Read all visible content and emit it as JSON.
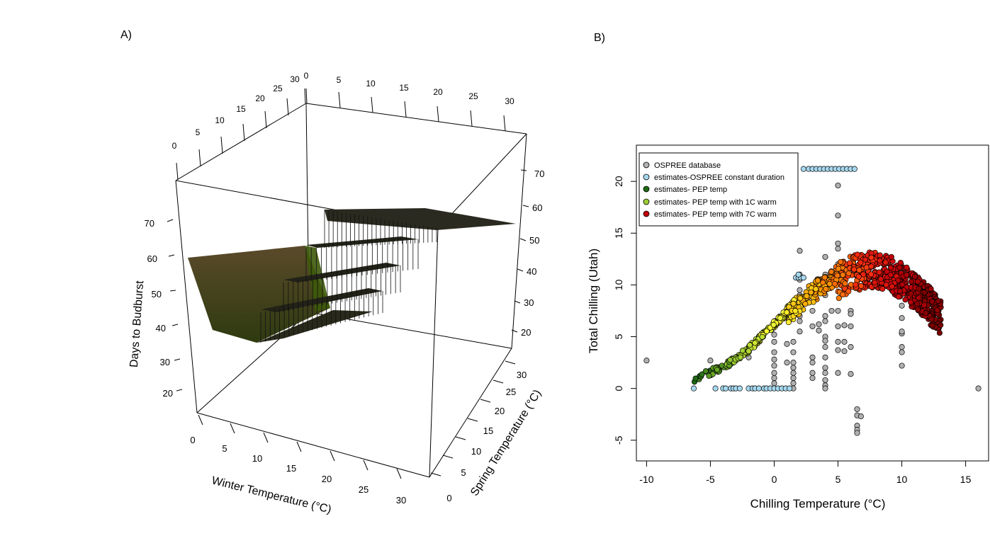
{
  "panel_a": {
    "label": "A)",
    "chart_data": {
      "type": "surface3d",
      "x_label": "Winter Temperature (°C)",
      "y_label": "Spring Temperature (°C)",
      "z_label": "Days to Budburst",
      "x_ticks": [
        "0",
        "5",
        "10",
        "15",
        "20",
        "25",
        "30"
      ],
      "y_ticks": [
        "0",
        "5",
        "10",
        "15",
        "20",
        "25",
        "30"
      ],
      "z_ticks_left": [
        "20",
        "30",
        "40",
        "50",
        "60",
        "70"
      ],
      "z_ticks_right": [
        "20",
        "30",
        "40",
        "50",
        "60",
        "70"
      ],
      "top_ticks_winter": [
        "0",
        "5",
        "10",
        "15",
        "20",
        "25",
        "30"
      ],
      "top_ticks_spring": [
        "0",
        "5",
        "10",
        "15",
        "20",
        "25",
        "30"
      ],
      "surface_colors": [
        "#6b4a2a",
        "#4f5a16",
        "#2a2a1a"
      ]
    }
  },
  "panel_b": {
    "label": "B)",
    "chart_data": {
      "type": "scatter",
      "x_label": "Chilling Temperature (°C)",
      "y_label": "Total Chilling (Utah)",
      "x_ticks": [
        -10,
        -5,
        0,
        5,
        10,
        15
      ],
      "y_ticks": [
        -5,
        0,
        5,
        10,
        15,
        20
      ],
      "xlim": [
        -10.8,
        16.8
      ],
      "ylim": [
        -7,
        23.5
      ],
      "legend_position": "top-left",
      "series": [
        {
          "name": "OSPREE database",
          "color": "#b0b0b0",
          "points": [
            [
              -10,
              2.7
            ],
            [
              16,
              0
            ],
            [
              -5,
              2.7
            ],
            [
              -2,
              3
            ],
            [
              0,
              5.2
            ],
            [
              0,
              4.5
            ],
            [
              0,
              3.5
            ],
            [
              0,
              2.8
            ],
            [
              0,
              2.2
            ],
            [
              0,
              1.5
            ],
            [
              0,
              1
            ],
            [
              0,
              0.5
            ],
            [
              2,
              13.3
            ],
            [
              2,
              11
            ],
            [
              2,
              10.5
            ],
            [
              2,
              9.5
            ],
            [
              2,
              9
            ],
            [
              2,
              8
            ],
            [
              1.5,
              4.5
            ],
            [
              1.5,
              3.5
            ],
            [
              1.5,
              2.5
            ],
            [
              1.5,
              2
            ],
            [
              1.5,
              1.5
            ],
            [
              1.5,
              1
            ],
            [
              1.5,
              0.5
            ],
            [
              1.5,
              0
            ],
            [
              2,
              7
            ],
            [
              2,
              6.5
            ],
            [
              2,
              5.5
            ],
            [
              3,
              7.5
            ],
            [
              3,
              6
            ],
            [
              3,
              3
            ],
            [
              3,
              1.5
            ],
            [
              3,
              1
            ],
            [
              4,
              12.7
            ],
            [
              4,
              11
            ],
            [
              4,
              9
            ],
            [
              4,
              7
            ],
            [
              4,
              6.5
            ],
            [
              4,
              5
            ],
            [
              4,
              4
            ],
            [
              4,
              3
            ],
            [
              4,
              2
            ],
            [
              4,
              1.5
            ],
            [
              4,
              0.8
            ],
            [
              4,
              0.3
            ],
            [
              4,
              0
            ],
            [
              5,
              19.6
            ],
            [
              5,
              16.7
            ],
            [
              5,
              14
            ],
            [
              5,
              13.5
            ],
            [
              5,
              12
            ],
            [
              5,
              10.5
            ],
            [
              5,
              7.5
            ],
            [
              5,
              6
            ],
            [
              5,
              4.5
            ],
            [
              5,
              3.7
            ],
            [
              5,
              1.5
            ],
            [
              5.5,
              3.6
            ],
            [
              5.5,
              4.5
            ],
            [
              6,
              7.5
            ],
            [
              6,
              6
            ],
            [
              6,
              4
            ],
            [
              6,
              1.4
            ],
            [
              6,
              7.2
            ],
            [
              6.5,
              -2
            ],
            [
              6.5,
              -2.6
            ],
            [
              6.5,
              -3.6
            ],
            [
              6.5,
              -4
            ],
            [
              6.5,
              -4.3
            ],
            [
              6.8,
              -2.7
            ],
            [
              10,
              8
            ],
            [
              10,
              6.8
            ],
            [
              10,
              5.3
            ],
            [
              10,
              5.5
            ],
            [
              10,
              4
            ],
            [
              10,
              3.5
            ],
            [
              10,
              2.2
            ],
            [
              1,
              4.3
            ],
            [
              1,
              2.5
            ],
            [
              3,
              2.5
            ],
            [
              4.5,
              7.5
            ],
            [
              5.5,
              6.1
            ],
            [
              3.5,
              6.2
            ],
            [
              3.5,
              5.6
            ],
            [
              4,
              4.6
            ]
          ]
        },
        {
          "name": "estimates-OSPREE constant duration",
          "color": "#a6d8ee",
          "points": [
            [
              -6.3,
              0
            ],
            [
              -4.6,
              0
            ],
            [
              -4,
              0
            ],
            [
              -3.8,
              0
            ],
            [
              -3.4,
              0
            ],
            [
              -3.2,
              0
            ],
            [
              -3,
              0
            ],
            [
              -2.7,
              0
            ],
            [
              -2,
              0
            ],
            [
              -1.7,
              0
            ],
            [
              -1.5,
              0
            ],
            [
              -1.2,
              0
            ],
            [
              -0.8,
              0
            ],
            [
              -0.6,
              0
            ],
            [
              -0.3,
              0
            ],
            [
              0,
              0
            ],
            [
              0.3,
              0
            ],
            [
              0.6,
              0
            ],
            [
              0.9,
              0
            ],
            [
              1.2,
              0
            ],
            [
              2.3,
              21.2
            ],
            [
              2.7,
              21.2
            ],
            [
              3,
              21.2
            ],
            [
              3.3,
              21.2
            ],
            [
              3.6,
              21.2
            ],
            [
              3.9,
              21.2
            ],
            [
              4.2,
              21.2
            ],
            [
              4.5,
              21.2
            ],
            [
              4.8,
              21.2
            ],
            [
              5.1,
              21.2
            ],
            [
              5.4,
              21.2
            ],
            [
              5.7,
              21.2
            ],
            [
              6,
              21.2
            ],
            [
              6.3,
              21.2
            ],
            [
              1.7,
              10.7
            ],
            [
              1.9,
              10.7
            ],
            [
              2.1,
              10.7
            ],
            [
              2.3,
              10.7
            ],
            [
              1.9,
              11
            ]
          ]
        }
      ]
    }
  },
  "legend_labels": {
    "ospree": "OSPREE database",
    "constant": "estimates-OSPREE constant duration",
    "pep": "estimates- PEP temp",
    "pep1": "estimates- PEP temp with 1C warm",
    "pep7": "estimates- PEP temp with 7C warm"
  },
  "legend_colors": {
    "ospree": "#b0b0b0",
    "constant": "#a6d8ee",
    "pep": "#1e6a14",
    "pep1": "#9acd32",
    "pep7": "#c0000a"
  },
  "pep_estimate_cloud": {
    "description_series": [
      "estimates- PEP temp",
      "estimates- PEP temp with 1C warm",
      "estimates- PEP temp with 7C warm"
    ],
    "curve": [
      [
        -6.3,
        1.1
      ],
      [
        -5,
        1.8
      ],
      [
        -4,
        2.3
      ],
      [
        -3,
        3.1
      ],
      [
        -2,
        4
      ],
      [
        -1,
        5.2
      ],
      [
        0,
        6.4
      ],
      [
        1,
        7.6
      ],
      [
        2,
        8.8
      ],
      [
        3,
        9.9
      ],
      [
        4,
        10.8
      ],
      [
        5,
        11.6
      ],
      [
        6,
        12.2
      ],
      [
        7,
        12.6
      ],
      [
        8,
        12.6
      ],
      [
        9,
        12.3
      ],
      [
        10,
        11.6
      ],
      [
        11,
        10.6
      ],
      [
        12,
        9.5
      ],
      [
        13,
        8
      ]
    ]
  }
}
